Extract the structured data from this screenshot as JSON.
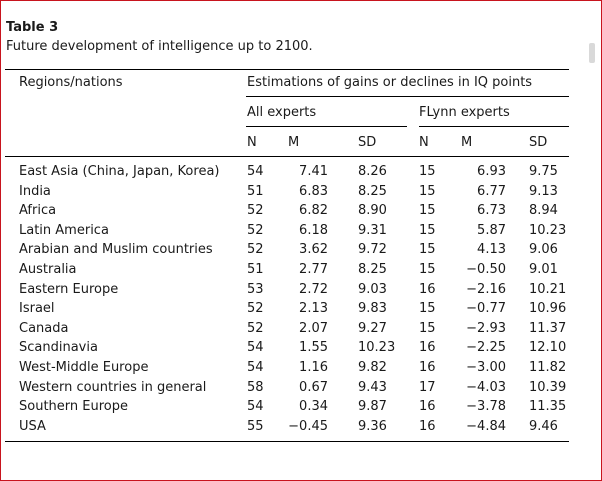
{
  "table": {
    "label": "Table 3",
    "caption": "Future development of intelligence up to 2100.",
    "header": {
      "regions": "Regions/nations",
      "estimations": "Estimations of gains or declines in IQ points",
      "all_experts": "All experts",
      "flynn_experts": "FLynn experts",
      "cols": [
        "N",
        "M",
        "SD",
        "N",
        "M",
        "SD"
      ]
    },
    "rows": [
      {
        "region": "East Asia (China, Japan, Korea)",
        "n1": "54",
        "m1": "7.41",
        "sd1": "8.26",
        "n2": "15",
        "m2": "6.93",
        "sd2": "9.75"
      },
      {
        "region": "India",
        "n1": "51",
        "m1": "6.83",
        "sd1": "8.25",
        "n2": "15",
        "m2": "6.77",
        "sd2": "9.13"
      },
      {
        "region": "Africa",
        "n1": "52",
        "m1": "6.82",
        "sd1": "8.90",
        "n2": "15",
        "m2": "6.73",
        "sd2": "8.94"
      },
      {
        "region": "Latin America",
        "n1": "52",
        "m1": "6.18",
        "sd1": "9.31",
        "n2": "15",
        "m2": "5.87",
        "sd2": "10.23"
      },
      {
        "region": "Arabian and Muslim countries",
        "n1": "52",
        "m1": "3.62",
        "sd1": "9.72",
        "n2": "15",
        "m2": "4.13",
        "sd2": "9.06"
      },
      {
        "region": "Australia",
        "n1": "51",
        "m1": "2.77",
        "sd1": "8.25",
        "n2": "15",
        "m2": "−0.50",
        "sd2": "9.01"
      },
      {
        "region": "Eastern Europe",
        "n1": "53",
        "m1": "2.72",
        "sd1": "9.03",
        "n2": "16",
        "m2": "−2.16",
        "sd2": "10.21"
      },
      {
        "region": "Israel",
        "n1": "52",
        "m1": "2.13",
        "sd1": "9.83",
        "n2": "15",
        "m2": "−0.77",
        "sd2": "10.96"
      },
      {
        "region": "Canada",
        "n1": "52",
        "m1": "2.07",
        "sd1": "9.27",
        "n2": "15",
        "m2": "−2.93",
        "sd2": "11.37"
      },
      {
        "region": "Scandinavia",
        "n1": "54",
        "m1": "1.55",
        "sd1": "10.23",
        "n2": "16",
        "m2": "−2.25",
        "sd2": "12.10"
      },
      {
        "region": "West-Middle Europe",
        "n1": "54",
        "m1": "1.16",
        "sd1": "9.82",
        "n2": "16",
        "m2": "−3.00",
        "sd2": "11.82"
      },
      {
        "region": "Western countries in general",
        "n1": "58",
        "m1": "0.67",
        "sd1": "9.43",
        "n2": "17",
        "m2": "−4.03",
        "sd2": "10.39"
      },
      {
        "region": "Southern Europe",
        "n1": "54",
        "m1": "0.34",
        "sd1": "9.87",
        "n2": "16",
        "m2": "−3.78",
        "sd2": "11.35"
      },
      {
        "region": "USA",
        "n1": "55",
        "m1": "−0.45",
        "sd1": "9.36",
        "n2": "16",
        "m2": "−4.84",
        "sd2": "9.46"
      }
    ]
  },
  "colors": {
    "frame": "#c8141e",
    "rule": "#000000"
  }
}
